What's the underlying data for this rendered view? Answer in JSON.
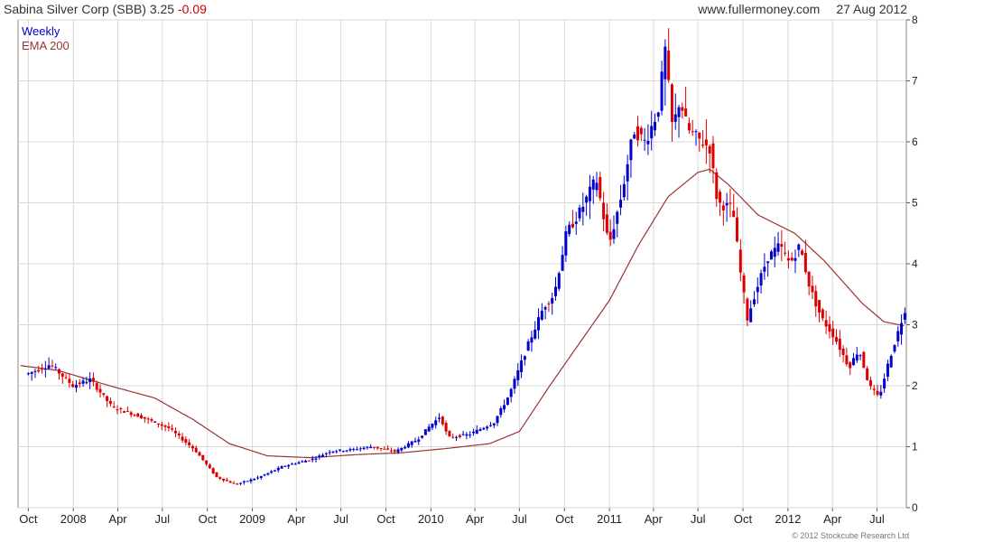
{
  "header": {
    "title": "Sabina Silver Corp (SBB)",
    "price": "3.25",
    "change": "-0.09",
    "site": "www.fullermoney.com",
    "date": "27 Aug 2012"
  },
  "footer": {
    "copyright": "© 2012 Stockcube Research Ltd"
  },
  "colors": {
    "up": "#0000cc",
    "down": "#dd0000",
    "ema": "#993333",
    "grid": "#d8d8d8",
    "axis": "#555555"
  },
  "chart_data": {
    "type": "candlestick",
    "legend": {
      "position": "top-left",
      "entries": [
        "Weekly",
        "EMA 200"
      ]
    },
    "x_ticks": [
      "Oct",
      "2008",
      "Apr",
      "Jul",
      "Oct",
      "2009",
      "Apr",
      "Jul",
      "Oct",
      "2010",
      "Apr",
      "Jul",
      "Oct",
      "2011",
      "Apr",
      "Jul",
      "Oct",
      "2012",
      "Apr",
      "Jul"
    ],
    "y_ticks": [
      0,
      1,
      2,
      3,
      4,
      5,
      6,
      7,
      8
    ],
    "ylim": [
      0,
      8
    ],
    "grid": true,
    "price_anchors": [
      [
        "2007-10-01",
        2.2
      ],
      [
        "2007-11-15",
        2.35
      ],
      [
        "2007-12-31",
        2.0
      ],
      [
        "2008-02-05",
        2.1
      ],
      [
        "2008-03-20",
        1.65
      ],
      [
        "2008-05-15",
        1.5
      ],
      [
        "2008-07-15",
        1.3
      ],
      [
        "2008-09-05",
        0.95
      ],
      [
        "2008-10-20",
        0.5
      ],
      [
        "2008-11-28",
        0.38
      ],
      [
        "2009-01-15",
        0.5
      ],
      [
        "2009-03-05",
        0.68
      ],
      [
        "2009-05-05",
        0.8
      ],
      [
        "2009-06-10",
        0.93
      ],
      [
        "2009-07-20",
        0.95
      ],
      [
        "2009-09-01",
        1.0
      ],
      [
        "2009-10-20",
        0.92
      ],
      [
        "2009-12-05",
        1.12
      ],
      [
        "2009-12-25",
        1.3
      ],
      [
        "2010-01-20",
        1.5
      ],
      [
        "2010-02-05",
        1.15
      ],
      [
        "2010-03-20",
        1.2
      ],
      [
        "2010-05-10",
        1.4
      ],
      [
        "2010-06-10",
        1.85
      ],
      [
        "2010-07-20",
        2.7
      ],
      [
        "2010-08-20",
        3.3
      ],
      [
        "2010-09-10",
        3.5
      ],
      [
        "2010-10-05",
        4.5
      ],
      [
        "2010-11-05",
        4.9
      ],
      [
        "2010-12-05",
        5.4
      ],
      [
        "2010-12-31",
        4.3
      ],
      [
        "2011-01-25",
        5.1
      ],
      [
        "2011-02-20",
        6.2
      ],
      [
        "2011-03-15",
        6.0
      ],
      [
        "2011-04-10",
        6.5
      ],
      [
        "2011-04-25",
        7.5
      ],
      [
        "2011-05-10",
        6.2
      ],
      [
        "2011-05-25",
        6.7
      ],
      [
        "2011-06-10",
        6.2
      ],
      [
        "2011-07-01",
        6.05
      ],
      [
        "2011-07-25",
        5.9
      ],
      [
        "2011-08-10",
        5.0
      ],
      [
        "2011-09-10",
        4.9
      ],
      [
        "2011-09-25",
        3.9
      ],
      [
        "2011-10-10",
        3.1
      ],
      [
        "2011-10-25",
        3.5
      ],
      [
        "2011-11-20",
        4.1
      ],
      [
        "2011-12-15",
        4.3
      ],
      [
        "2012-01-05",
        4.0
      ],
      [
        "2012-01-25",
        4.3
      ],
      [
        "2012-02-15",
        3.6
      ],
      [
        "2012-03-10",
        3.1
      ],
      [
        "2012-04-05",
        2.8
      ],
      [
        "2012-05-05",
        2.3
      ],
      [
        "2012-05-25",
        2.6
      ],
      [
        "2012-06-15",
        2.0
      ],
      [
        "2012-07-05",
        1.8
      ],
      [
        "2012-07-25",
        2.4
      ],
      [
        "2012-08-10",
        2.8
      ],
      [
        "2012-08-27",
        3.25
      ]
    ],
    "ema_anchors": [
      [
        "2007-09-15",
        2.33
      ],
      [
        "2007-12-01",
        2.25
      ],
      [
        "2008-03-15",
        2.0
      ],
      [
        "2008-06-15",
        1.8
      ],
      [
        "2008-09-01",
        1.45
      ],
      [
        "2008-11-15",
        1.05
      ],
      [
        "2009-02-01",
        0.85
      ],
      [
        "2009-05-01",
        0.82
      ],
      [
        "2009-08-01",
        0.87
      ],
      [
        "2009-11-01",
        0.9
      ],
      [
        "2010-02-01",
        0.97
      ],
      [
        "2010-05-01",
        1.05
      ],
      [
        "2010-07-01",
        1.25
      ],
      [
        "2010-09-01",
        2.0
      ],
      [
        "2010-11-01",
        2.7
      ],
      [
        "2011-01-01",
        3.4
      ],
      [
        "2011-03-01",
        4.3
      ],
      [
        "2011-05-01",
        5.1
      ],
      [
        "2011-07-01",
        5.5
      ],
      [
        "2011-07-25",
        5.55
      ],
      [
        "2011-09-01",
        5.3
      ],
      [
        "2011-11-01",
        4.8
      ],
      [
        "2012-01-15",
        4.5
      ],
      [
        "2012-03-15",
        4.05
      ],
      [
        "2012-06-01",
        3.35
      ],
      [
        "2012-07-15",
        3.05
      ],
      [
        "2012-08-27",
        2.98
      ]
    ],
    "x_range": [
      "2007-09-10",
      "2012-08-30"
    ]
  }
}
